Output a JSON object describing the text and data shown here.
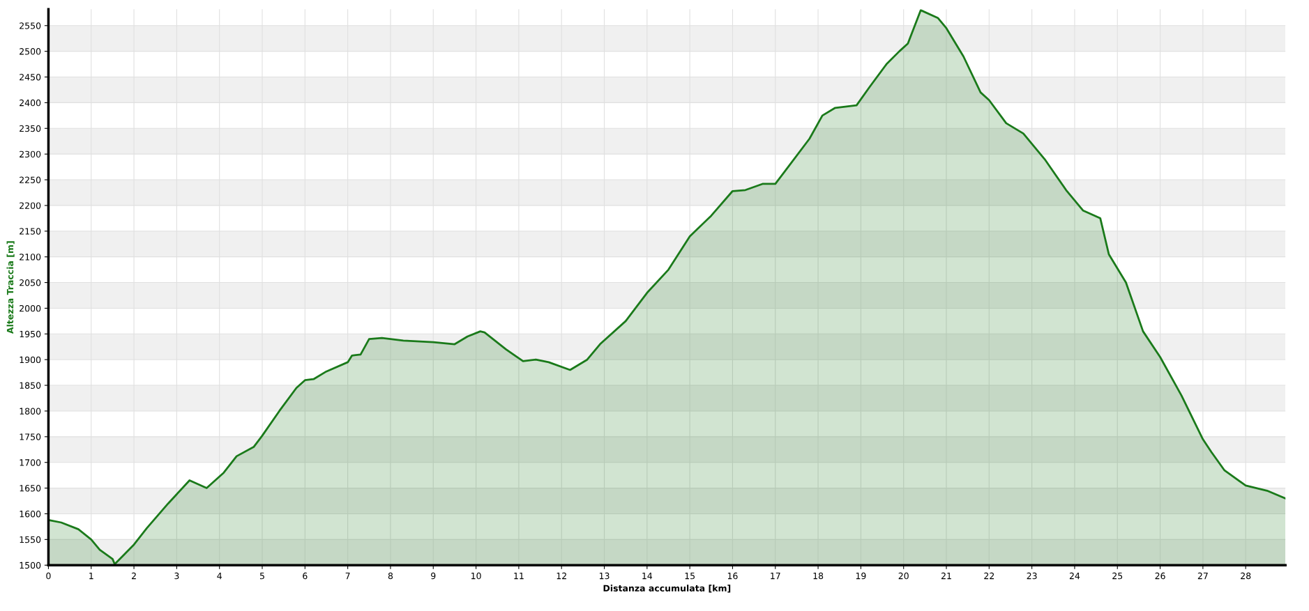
{
  "chart_data": {
    "type": "area",
    "xlabel": "Distanza accumulata [km]",
    "ylabel": "Altezza Traccia [m]",
    "xlim": [
      0,
      28.93
    ],
    "ylim": [
      1500,
      2582
    ],
    "xticks": [
      0,
      1,
      2,
      3,
      4,
      5,
      6,
      7,
      8,
      9,
      10,
      11,
      12,
      13,
      14,
      15,
      16,
      17,
      18,
      19,
      20,
      21,
      22,
      23,
      24,
      25,
      26,
      27,
      28
    ],
    "yticks": [
      1500,
      1550,
      1600,
      1650,
      1700,
      1750,
      1800,
      1850,
      1900,
      1950,
      2000,
      2050,
      2100,
      2150,
      2200,
      2250,
      2300,
      2350,
      2400,
      2450,
      2500,
      2550
    ],
    "grid": true,
    "series": [
      {
        "color": "#1a7a1a",
        "x": [
          0,
          0.3,
          0.7,
          1.0,
          1.2,
          1.5,
          1.55,
          2.0,
          2.3,
          2.8,
          3.3,
          3.7,
          4.1,
          4.4,
          4.8,
          5.0,
          5.4,
          5.8,
          6.0,
          6.2,
          6.5,
          7.0,
          7.1,
          7.3,
          7.5,
          7.8,
          8.3,
          9.0,
          9.5,
          9.8,
          10.1,
          10.2,
          10.7,
          11.1,
          11.4,
          11.7,
          12.2,
          12.6,
          12.9,
          13.5,
          14.0,
          14.5,
          15.0,
          15.5,
          16.0,
          16.3,
          16.7,
          17.0,
          17.3,
          17.8,
          18.1,
          18.4,
          18.9,
          19.2,
          19.6,
          19.9,
          20.1,
          20.4,
          20.8,
          21.0,
          21.4,
          21.8,
          22.0,
          22.4,
          22.8,
          23.3,
          23.8,
          24.2,
          24.6,
          24.8,
          25.2,
          25.6,
          26.0,
          26.5,
          27.0,
          27.2,
          27.5,
          28.0,
          28.5,
          28.93
        ],
        "values": [
          1588,
          1583,
          1570,
          1550,
          1530,
          1512,
          1502,
          1540,
          1572,
          1620,
          1665,
          1650,
          1680,
          1712,
          1730,
          1752,
          1800,
          1845,
          1860,
          1862,
          1877,
          1895,
          1908,
          1910,
          1940,
          1942,
          1937,
          1934,
          1930,
          1945,
          1955,
          1953,
          1920,
          1897,
          1900,
          1895,
          1880,
          1900,
          1930,
          1975,
          2030,
          2075,
          2140,
          2180,
          2228,
          2230,
          2242,
          2242,
          2275,
          2330,
          2375,
          2390,
          2395,
          2430,
          2475,
          2500,
          2515,
          2580,
          2565,
          2545,
          2490,
          2420,
          2405,
          2360,
          2340,
          2290,
          2230,
          2190,
          2175,
          2105,
          2050,
          1955,
          1905,
          1830,
          1745,
          1720,
          1685,
          1655,
          1645,
          1630
        ]
      }
    ]
  }
}
